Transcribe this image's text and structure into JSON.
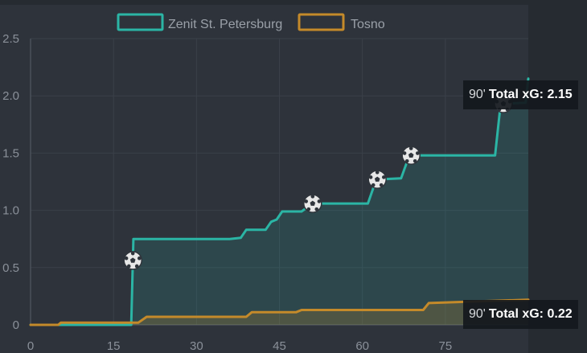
{
  "chart_data": {
    "type": "area",
    "title": "",
    "xlabel": "",
    "ylabel": "",
    "xlim": [
      0,
      90
    ],
    "ylim": [
      0,
      2.5
    ],
    "x_ticks": [
      "0",
      "15",
      "30",
      "45",
      "60",
      "75"
    ],
    "y_ticks": [
      "0",
      "0.5",
      "1.0",
      "1.5",
      "2.0",
      "2.5"
    ],
    "grid": true,
    "legend_position": "top",
    "series": [
      {
        "name": "Zenit St. Petersburg",
        "color": "#2bb5a5",
        "points": [
          [
            0,
            0
          ],
          [
            18.2,
            0
          ],
          [
            18.6,
            0.75
          ],
          [
            36,
            0.75
          ],
          [
            38,
            0.76
          ],
          [
            39,
            0.83
          ],
          [
            42.5,
            0.83
          ],
          [
            43.5,
            0.9
          ],
          [
            44.5,
            0.92
          ],
          [
            45.5,
            0.99
          ],
          [
            49,
            0.99
          ],
          [
            51,
            1.06
          ],
          [
            61,
            1.06
          ],
          [
            62.5,
            1.27
          ],
          [
            67,
            1.28
          ],
          [
            68.5,
            1.48
          ],
          [
            84,
            1.48
          ],
          [
            85,
            1.93
          ],
          [
            89.5,
            1.94
          ],
          [
            90,
            2.15
          ]
        ],
        "goals": [
          18.5,
          51,
          62.7,
          68.8,
          85.5
        ]
      },
      {
        "name": "Tosno",
        "color": "#c48a2a",
        "points": [
          [
            0,
            0
          ],
          [
            5,
            0
          ],
          [
            5.5,
            0.02
          ],
          [
            19.5,
            0.02
          ],
          [
            21,
            0.07
          ],
          [
            39,
            0.07
          ],
          [
            40,
            0.11
          ],
          [
            48,
            0.11
          ],
          [
            49,
            0.13
          ],
          [
            71,
            0.13
          ],
          [
            72,
            0.19
          ],
          [
            90,
            0.22
          ]
        ]
      }
    ],
    "tooltips": [
      {
        "minute": "90'",
        "label": "Total xG:",
        "value": "2.15"
      },
      {
        "minute": "90'",
        "label": "Total xG:",
        "value": "0.22"
      }
    ]
  },
  "legend": {
    "zenit": "Zenit St. Petersburg",
    "tosno": "Tosno"
  }
}
